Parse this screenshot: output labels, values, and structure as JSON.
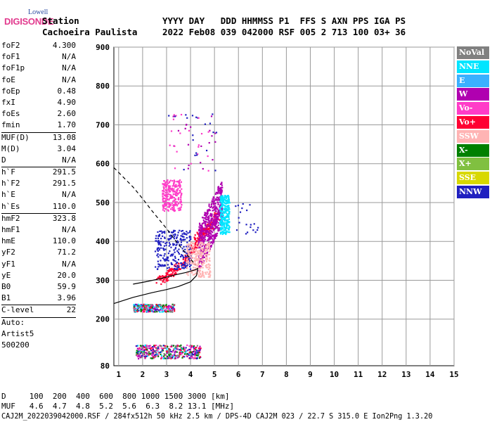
{
  "logo": {
    "top": "Lowell",
    "main": "DIGISONDE"
  },
  "header": {
    "label_station": "Station",
    "station_name": "Cachoeira Paulista",
    "cols_line1": "YYYY DAY   DDD HHMMSS P1  FFS S AXN PPS IGA PS",
    "cols_line2": "2022 Feb08 039 042000 RSF 005 2 713 100 03+ 36"
  },
  "params": [
    {
      "k": "foF2",
      "v": "4.300"
    },
    {
      "k": "foF1",
      "v": "N/A"
    },
    {
      "k": "foF1p",
      "v": "N/A"
    },
    {
      "k": "foE",
      "v": "N/A"
    },
    {
      "k": "foEp",
      "v": "0.48"
    },
    {
      "k": "fxI",
      "v": "4.90"
    },
    {
      "k": "foEs",
      "v": "2.60"
    },
    {
      "k": "fmin",
      "v": "1.70"
    },
    {
      "k": "MUF(D)",
      "v": "13.08",
      "sep": true
    },
    {
      "k": "M(D)",
      "v": "3.04"
    },
    {
      "k": "D",
      "v": "N/A"
    },
    {
      "k": "h`F",
      "v": "291.5",
      "sep": true
    },
    {
      "k": "h`F2",
      "v": "291.5"
    },
    {
      "k": "h`E",
      "v": "N/A"
    },
    {
      "k": "h`Es",
      "v": "110.0"
    },
    {
      "k": "hmF2",
      "v": "323.8",
      "sep": true
    },
    {
      "k": "hmF1",
      "v": "N/A"
    },
    {
      "k": "hmE",
      "v": "110.0"
    },
    {
      "k": "yF2",
      "v": "71.2"
    },
    {
      "k": "yF1",
      "v": "N/A"
    },
    {
      "k": "yE",
      "v": "20.0"
    },
    {
      "k": "B0",
      "v": "59.9"
    },
    {
      "k": "B1",
      "v": "3.96"
    },
    {
      "k": "C-level",
      "v": "22",
      "sep": true
    },
    {
      "k": "Auto:",
      "v": "",
      "sep": true
    },
    {
      "k": "Artist5",
      "v": ""
    },
    {
      "k": "500200",
      "v": ""
    }
  ],
  "legend": [
    {
      "label": "NoVal",
      "color": "#808080"
    },
    {
      "label": "NNE",
      "color": "#00e5ff"
    },
    {
      "label": "E",
      "color": "#3ab0ff"
    },
    {
      "label": "W",
      "color": "#b000b0"
    },
    {
      "label": "Vo-",
      "color": "#ff3cc8"
    },
    {
      "label": "Vo+",
      "color": "#ff0033"
    },
    {
      "label": "SSW",
      "color": "#ffb4b4"
    },
    {
      "label": "X-",
      "color": "#008000"
    },
    {
      "label": "X+",
      "color": "#80c040"
    },
    {
      "label": "SSE",
      "color": "#d8d800"
    },
    {
      "label": "NNW",
      "color": "#2020c0"
    }
  ],
  "footer": {
    "line1": "D     100  200  400  600  800 1000 1500 3000 [km]",
    "line2": "MUF   4.6  4.7  4.8  5.2  5.6  6.3  8.2 13.1 [MHz]",
    "line3": "CAJ2M_2022039042000.RSF / 284fx512h 50 kHz 2.5 km / DPS-4D CAJ2M 023 / 22.7 S 315.0 E Ion2Png 1.3.20"
  },
  "chart_data": {
    "type": "scatter",
    "xlim": [
      0.8,
      15
    ],
    "ylim": [
      80,
      900
    ],
    "xticks": [
      1,
      2,
      3,
      4,
      5,
      6,
      7,
      8,
      9,
      10,
      11,
      12,
      13,
      14,
      15
    ],
    "yticks": [
      80,
      200,
      300,
      400,
      500,
      600,
      700,
      800,
      900
    ],
    "grid": true,
    "profile_solid": [
      [
        1.6,
        290
      ],
      [
        2.2,
        297
      ],
      [
        2.8,
        305
      ],
      [
        3.3,
        313
      ],
      [
        3.8,
        320
      ],
      [
        4.15,
        326
      ],
      [
        4.3,
        330
      ],
      [
        4.25,
        312
      ],
      [
        4.0,
        296
      ],
      [
        3.5,
        284
      ],
      [
        3.0,
        276
      ],
      [
        2.4,
        268
      ],
      [
        1.6,
        256
      ],
      [
        0.8,
        240
      ]
    ],
    "profile_dashed": [
      [
        0.8,
        590
      ],
      [
        1.2,
        565
      ],
      [
        1.6,
        540
      ],
      [
        2.0,
        510
      ],
      [
        2.4,
        478
      ],
      [
        2.8,
        448
      ],
      [
        3.1,
        425
      ],
      [
        3.4,
        400
      ],
      [
        3.7,
        377
      ],
      [
        4.0,
        355
      ],
      [
        4.2,
        340
      ]
    ],
    "echo_clusters": [
      {
        "label": "Vo+",
        "color": "#ff0033",
        "trace": [
          [
            2.6,
            300
          ],
          [
            3.0,
            312
          ],
          [
            3.4,
            330
          ],
          [
            3.8,
            355
          ],
          [
            4.1,
            385
          ],
          [
            4.3,
            410
          ],
          [
            4.6,
            430
          ],
          [
            4.9,
            450
          ],
          [
            5.1,
            470
          ]
        ]
      },
      {
        "label": "W",
        "color": "#b000b0",
        "band": {
          "x": [
            4.3,
            5.3
          ],
          "y": [
            360,
            560
          ]
        }
      },
      {
        "label": "NNW",
        "color": "#2020c0",
        "band": {
          "x": [
            2.5,
            4.0
          ],
          "y": [
            330,
            430
          ]
        }
      },
      {
        "label": "SSW",
        "color": "#ffb4b4",
        "band": {
          "x": [
            3.8,
            4.8
          ],
          "y": [
            310,
            400
          ]
        }
      },
      {
        "label": "NNE",
        "color": "#00e5ff",
        "band": {
          "x": [
            5.2,
            5.6
          ],
          "y": [
            420,
            520
          ]
        }
      },
      {
        "label": "Vo-",
        "color": "#ff3cc8",
        "band": {
          "x": [
            2.8,
            3.6
          ],
          "y": [
            480,
            560
          ]
        }
      },
      {
        "label": "Es",
        "color": "#808080",
        "band": {
          "x": [
            1.6,
            3.3
          ],
          "y": [
            220,
            240
          ]
        }
      },
      {
        "label": "E",
        "color": "#ff3cc8",
        "band": {
          "x": [
            1.7,
            4.4
          ],
          "y": [
            100,
            135
          ]
        }
      }
    ]
  }
}
